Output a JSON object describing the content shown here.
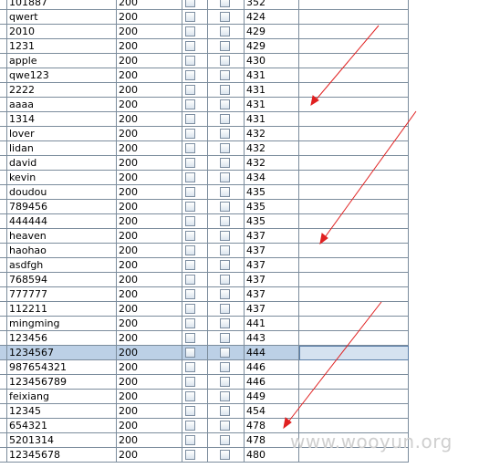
{
  "table": {
    "rows": [
      {
        "name": "101887",
        "count": "200",
        "value": "352"
      },
      {
        "name": "qwert",
        "count": "200",
        "value": "424"
      },
      {
        "name": "2010",
        "count": "200",
        "value": "429"
      },
      {
        "name": "1231",
        "count": "200",
        "value": "429"
      },
      {
        "name": "apple",
        "count": "200",
        "value": "430"
      },
      {
        "name": "qwe123",
        "count": "200",
        "value": "431"
      },
      {
        "name": "2222",
        "count": "200",
        "value": "431"
      },
      {
        "name": "aaaa",
        "count": "200",
        "value": "431"
      },
      {
        "name": "1314",
        "count": "200",
        "value": "431"
      },
      {
        "name": "lover",
        "count": "200",
        "value": "432"
      },
      {
        "name": "lidan",
        "count": "200",
        "value": "432"
      },
      {
        "name": "david",
        "count": "200",
        "value": "432"
      },
      {
        "name": "kevin",
        "count": "200",
        "value": "434"
      },
      {
        "name": "doudou",
        "count": "200",
        "value": "435"
      },
      {
        "name": "789456",
        "count": "200",
        "value": "435"
      },
      {
        "name": "444444",
        "count": "200",
        "value": "435"
      },
      {
        "name": "heaven",
        "count": "200",
        "value": "437"
      },
      {
        "name": "haohao",
        "count": "200",
        "value": "437"
      },
      {
        "name": "asdfgh",
        "count": "200",
        "value": "437"
      },
      {
        "name": "768594",
        "count": "200",
        "value": "437"
      },
      {
        "name": "777777",
        "count": "200",
        "value": "437"
      },
      {
        "name": "112211",
        "count": "200",
        "value": "437"
      },
      {
        "name": "mingming",
        "count": "200",
        "value": "441"
      },
      {
        "name": "123456",
        "count": "200",
        "value": "443"
      },
      {
        "name": "1234567",
        "count": "200",
        "value": "444",
        "selected": true
      },
      {
        "name": "987654321",
        "count": "200",
        "value": "446"
      },
      {
        "name": "123456789",
        "count": "200",
        "value": "446"
      },
      {
        "name": "feixiang",
        "count": "200",
        "value": "449"
      },
      {
        "name": "12345",
        "count": "200",
        "value": "454"
      },
      {
        "name": "654321",
        "count": "200",
        "value": "478"
      },
      {
        "name": "5201314",
        "count": "200",
        "value": "478"
      },
      {
        "name": "12345678",
        "count": "200",
        "value": "480"
      }
    ]
  },
  "watermark": "www.wooyun.org",
  "colors": {
    "arrow": "#e02020",
    "selected_row": "#bcd0e6",
    "grid_line": "#7b8c9c"
  }
}
